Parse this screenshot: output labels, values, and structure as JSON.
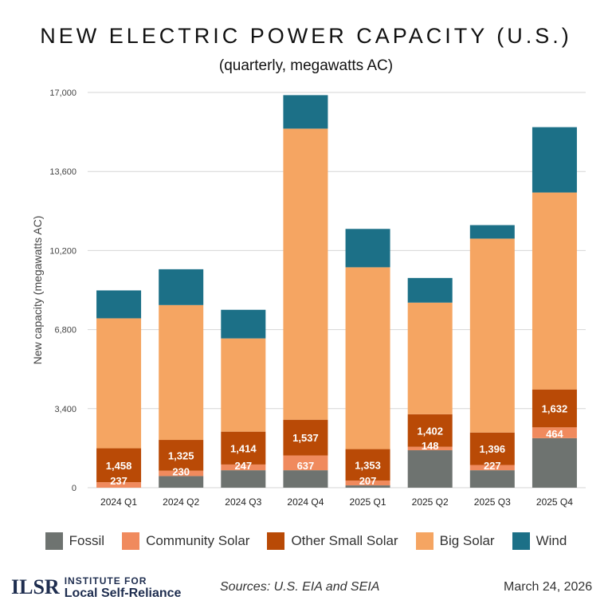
{
  "chart_data": {
    "type": "bar",
    "stacked": true,
    "title": "NEW ELECTRIC POWER CAPACITY (U.S.)",
    "subtitle": "(quarterly, megawatts AC)",
    "ylabel": "New capacity (megawatts AC)",
    "xlabel": "",
    "ylim": [
      0,
      17000
    ],
    "yticks": [
      "0",
      "3,400",
      "6,800",
      "10,200",
      "13,600",
      "17,000"
    ],
    "ytick_values": [
      0,
      3400,
      6800,
      10200,
      13600,
      17000
    ],
    "grid": true,
    "legend_position": "bottom",
    "categories": [
      "2024 Q1",
      "2024 Q2",
      "2024 Q3",
      "2024 Q4",
      "2025 Q1",
      "2025 Q2",
      "2025 Q3",
      "2025 Q4"
    ],
    "series": [
      {
        "name": "Fossil",
        "color": "#6e7370",
        "values": [
          0,
          500,
          750,
          750,
          100,
          1610,
          750,
          2130
        ]
      },
      {
        "name": "Community Solar",
        "color": "#f08a5d",
        "values": [
          237,
          230,
          247,
          637,
          207,
          148,
          227,
          464
        ],
        "labels": [
          "237",
          "230",
          "247",
          "637",
          "207",
          "148",
          "227",
          "464"
        ]
      },
      {
        "name": "Other Small Solar",
        "color": "#b94a06",
        "values": [
          1458,
          1325,
          1414,
          1537,
          1353,
          1402,
          1396,
          1632
        ],
        "labels": [
          "1,458",
          "1,325",
          "1,414",
          "1,537",
          "1,353",
          "1,402",
          "1,396",
          "1,632"
        ]
      },
      {
        "name": "Big Solar",
        "color": "#f5a562",
        "values": [
          5590,
          5800,
          4010,
          12520,
          7820,
          4800,
          8340,
          8470
        ]
      },
      {
        "name": "Wind",
        "color": "#1c7087",
        "values": [
          1200,
          1540,
          1230,
          1440,
          1650,
          1060,
          580,
          2810
        ]
      }
    ]
  },
  "footer": {
    "logo_line1": "INSTITUTE FOR",
    "logo_line2": "Local Self-Reliance",
    "logo_mark": "ILSR",
    "source": "Sources: U.S. EIA and SEIA",
    "date": "March 24, 2026"
  }
}
